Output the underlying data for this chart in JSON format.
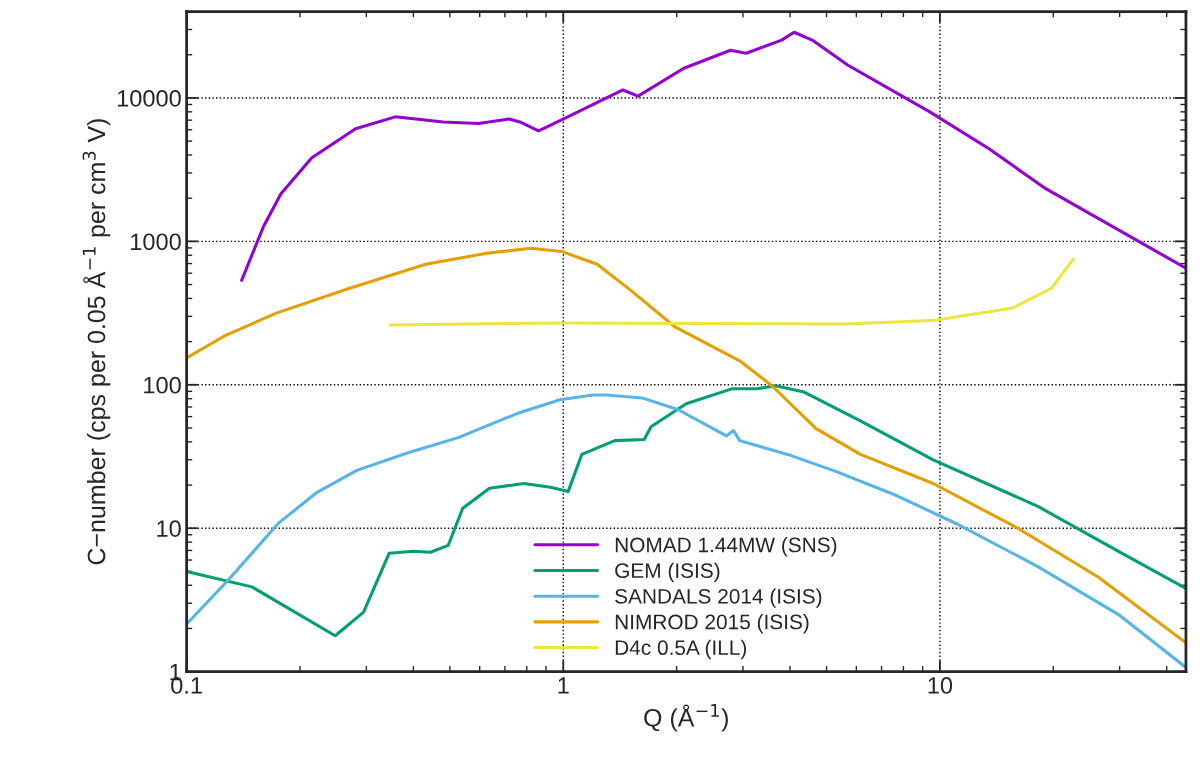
{
  "chart_data": {
    "type": "line",
    "xlabel": "Q (Å$^{−1}$)",
    "ylabel": "C−number (cps per 0.05 Å$^{−1}$ per cm$^{3}$ V)",
    "log": "xy",
    "xlim": [
      0.1,
      45
    ],
    "ylim": [
      1,
      40000
    ],
    "xticks": [
      0.1,
      1,
      10
    ],
    "yticks": [
      1,
      10,
      100,
      1000,
      10000
    ],
    "grid": true,
    "legend": "bottom",
    "line_style": "solid",
    "marker": "none",
    "series": [
      {
        "name": "NOMAD 1.44MW (SNS)",
        "color": "#9400d3",
        "x": [
          0.14,
          0.16,
          0.178,
          0.215,
          0.281,
          0.358,
          0.48,
          0.596,
          0.718,
          0.767,
          0.86,
          0.99,
          1.44,
          1.58,
          2.09,
          2.78,
          3.06,
          3.8,
          4.1,
          4.58,
          5.7,
          9.4,
          13.5,
          19.1,
          45
        ],
        "values": [
          535,
          1270,
          2150,
          3830,
          6090,
          7380,
          6790,
          6640,
          7140,
          6800,
          5900,
          7030,
          11360,
          10300,
          16100,
          21500,
          20500,
          25300,
          28700,
          25300,
          16900,
          8000,
          4420,
          2330,
          650
        ]
      },
      {
        "name": "GEM (ISIS)",
        "color": "#009e73",
        "x": [
          0.1,
          0.149,
          0.248,
          0.295,
          0.345,
          0.4,
          0.444,
          0.495,
          0.541,
          0.637,
          0.786,
          0.925,
          1.03,
          1.12,
          1.37,
          1.64,
          1.71,
          2.12,
          2.8,
          3.27,
          3.66,
          4.36,
          6.15,
          9.6,
          18.2,
          29.8,
          45
        ],
        "values": [
          5.0,
          3.9,
          1.78,
          2.6,
          6.7,
          6.9,
          6.8,
          7.6,
          13.8,
          19,
          20.5,
          19.3,
          18,
          32.7,
          40.8,
          41.5,
          51,
          73.8,
          93.7,
          93.7,
          98.5,
          89,
          56,
          30,
          14.2,
          6.9,
          3.8
        ]
      },
      {
        "name": "SANDALS 2014 (ISIS)",
        "color": "#56b4e9",
        "x": [
          0.1,
          0.129,
          0.175,
          0.222,
          0.283,
          0.389,
          0.526,
          0.754,
          0.98,
          1.2,
          1.3,
          1.62,
          2.02,
          2.71,
          2.83,
          2.94,
          3.94,
          5.29,
          7.67,
          11.1,
          18.2,
          29.8,
          45
        ],
        "values": [
          2.15,
          4.35,
          10.8,
          17.8,
          25.3,
          33.7,
          42.8,
          63,
          78.7,
          85,
          85,
          81,
          67,
          44,
          48,
          40.8,
          32.7,
          24.9,
          16.9,
          10.7,
          5.4,
          2.5,
          1.07
        ]
      },
      {
        "name": "NIMROD 2015 (ISIS)",
        "color": "#e69f00",
        "x": [
          0.1,
          0.126,
          0.173,
          0.266,
          0.431,
          0.626,
          0.82,
          0.99,
          1.23,
          1.52,
          1.98,
          2.94,
          3.58,
          4.69,
          6.15,
          9.6,
          16.1,
          26.3,
          45
        ],
        "values": [
          154,
          219,
          316,
          464,
          692,
          826,
          894,
          851,
          692,
          450,
          253,
          147,
          98.5,
          49.5,
          32.7,
          20.5,
          10,
          4.57,
          1.59
        ]
      },
      {
        "name": "D4c 0.5A (ILL)",
        "color": "#f0e442",
        "x": [
          0.347,
          1,
          5.7,
          9.7,
          15.6,
          19.8,
          22.6
        ],
        "values": [
          261,
          270,
          265,
          282,
          343,
          472,
          750
        ]
      }
    ]
  }
}
